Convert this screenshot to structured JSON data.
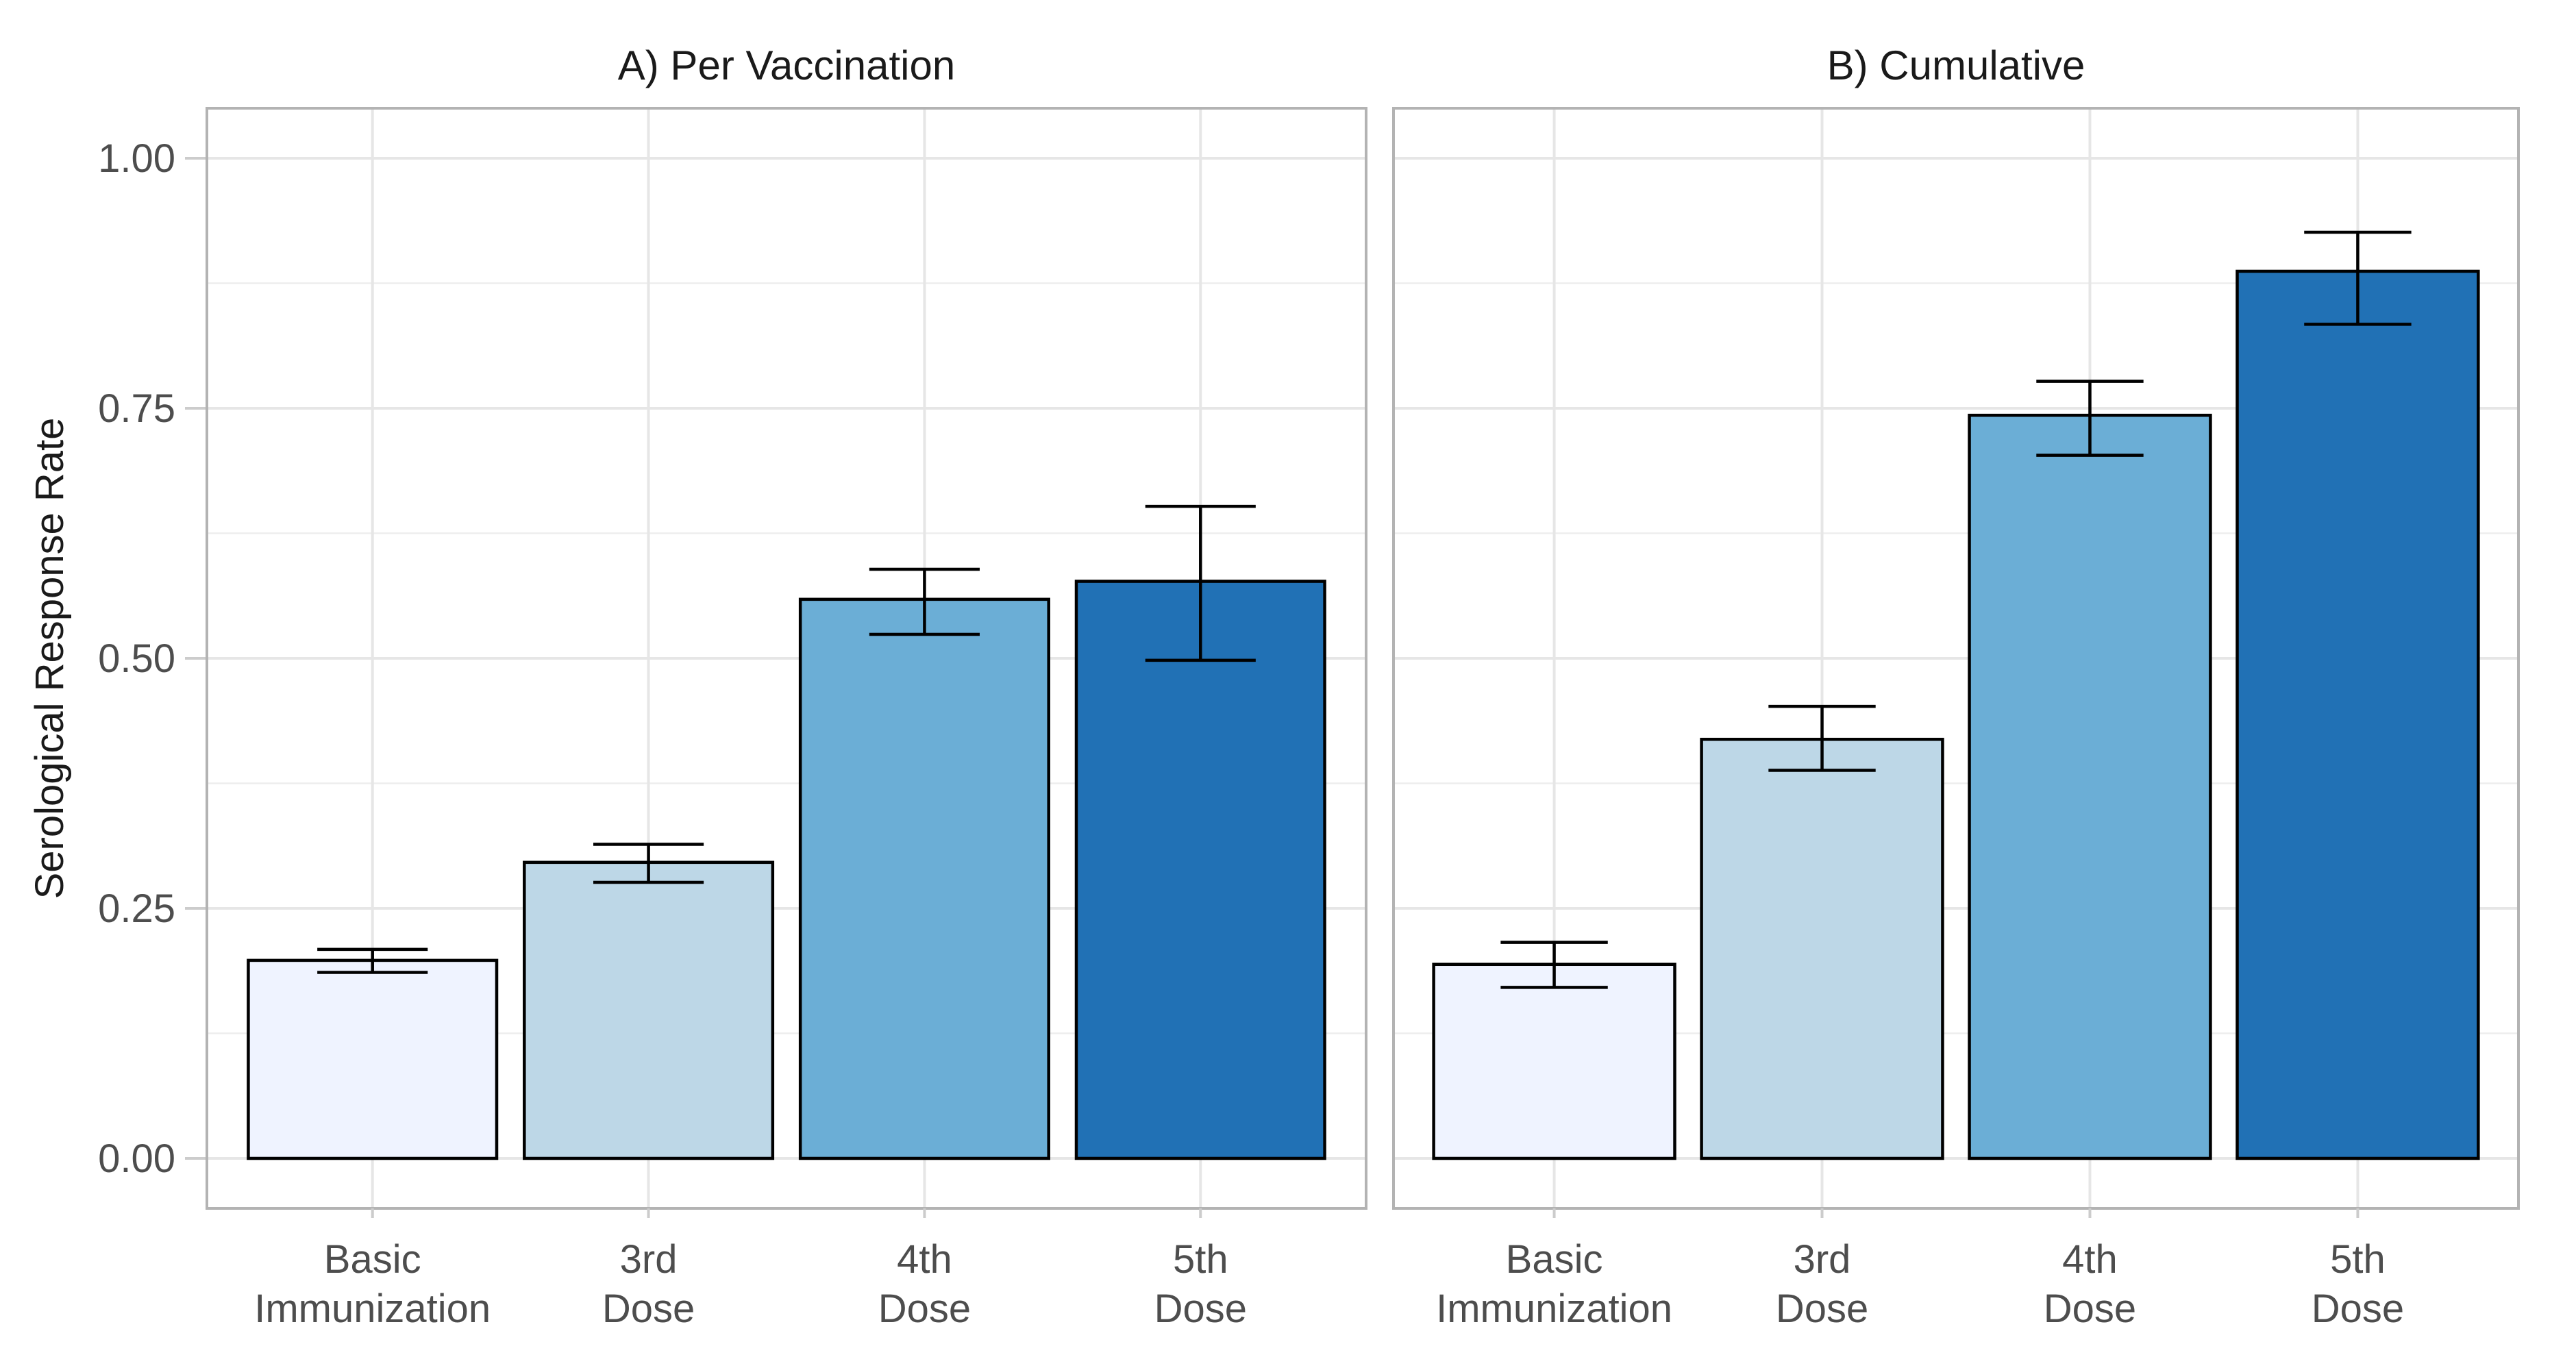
{
  "chart_data": {
    "type": "bar",
    "ylabel": "Serological Response Rate",
    "xlabel": "",
    "ylim": [
      -0.05,
      1.05
    ],
    "yticks": [
      0.0,
      0.25,
      0.5,
      0.75,
      1.0
    ],
    "ytick_labels": [
      "0.00",
      "0.25",
      "0.50",
      "0.75",
      "1.00"
    ],
    "categories": [
      [
        "Basic",
        "Immunization"
      ],
      [
        "3rd",
        "Dose"
      ],
      [
        "4th",
        "Dose"
      ],
      [
        "5th",
        "Dose"
      ]
    ],
    "colors": [
      "#eff3ff",
      "#bdd7e7",
      "#6baed6",
      "#2171b5"
    ],
    "panels": [
      {
        "title": "A) Per Vaccination",
        "values": [
          0.198,
          0.296,
          0.559,
          0.577
        ],
        "lower": [
          0.186,
          0.276,
          0.524,
          0.498
        ],
        "upper": [
          0.209,
          0.314,
          0.589,
          0.652
        ]
      },
      {
        "title": "B) Cumulative",
        "values": [
          0.194,
          0.419,
          0.743,
          0.887
        ],
        "lower": [
          0.171,
          0.388,
          0.703,
          0.834
        ],
        "upper": [
          0.216,
          0.452,
          0.777,
          0.926
        ]
      }
    ]
  }
}
